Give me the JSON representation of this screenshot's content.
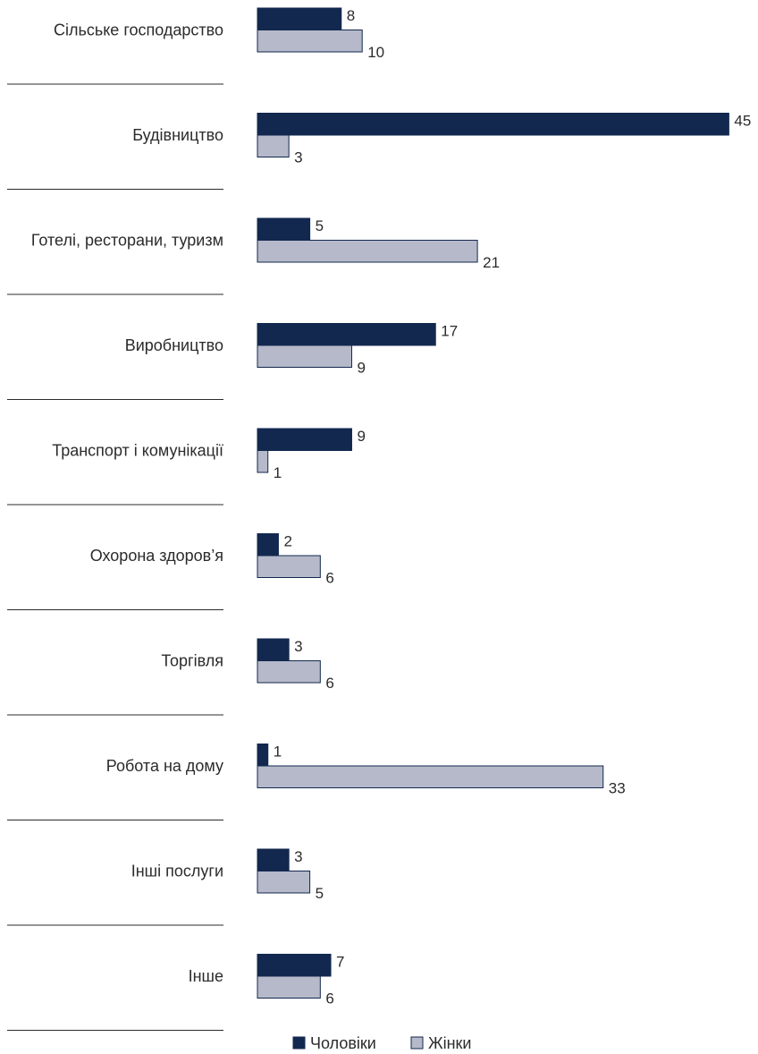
{
  "chart_data": {
    "type": "bar",
    "orientation": "horizontal",
    "title": "",
    "xlabel": "",
    "ylabel": "",
    "grid": false,
    "legend_placement": "bottom-center",
    "categories": [
      "Сільське господарство",
      "Будівництво",
      "Готелі, ресторани, туризм",
      "Виробництво",
      "Транспорт і комунікації",
      "Охорона здоров’я",
      "Торгівля",
      "Робота на дому",
      "Інші послуги",
      "Інше"
    ],
    "series": [
      {
        "name": "Чоловіки",
        "color": "#13284f",
        "values": [
          8,
          45,
          5,
          17,
          9,
          2,
          3,
          1,
          3,
          7
        ]
      },
      {
        "name": "Жінки",
        "color": "#b5b9c9",
        "values": [
          10,
          3,
          21,
          9,
          1,
          6,
          6,
          33,
          5,
          6
        ]
      }
    ],
    "xlim": [
      0,
      45
    ]
  }
}
